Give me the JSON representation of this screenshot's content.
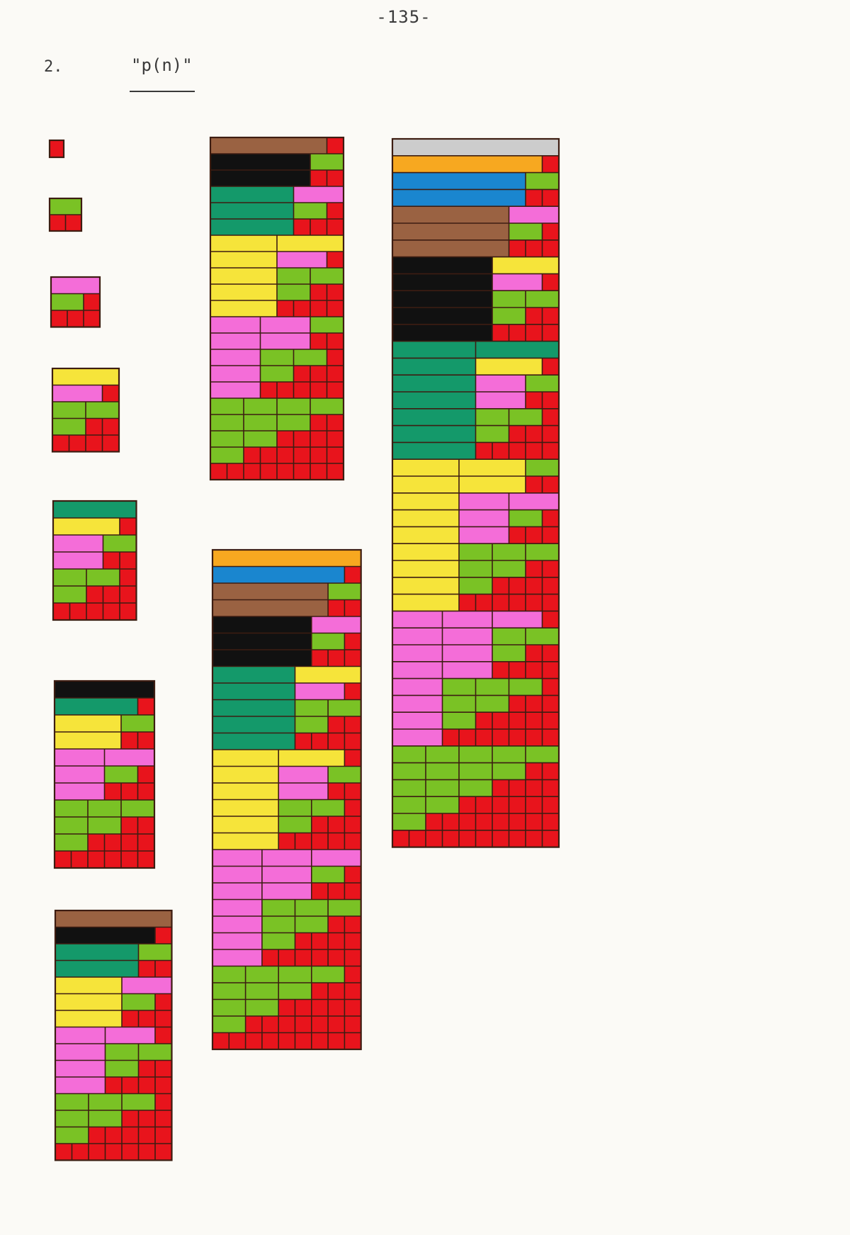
{
  "page": {
    "number": "-135-",
    "item_number": "2.",
    "title": "\"p(n)\""
  },
  "legend_colors": {
    "1": "#e8141c",
    "2": "#7ac225",
    "3": "#f46dd8",
    "4": "#f6e43a",
    "5": "#14996a",
    "6": "#111111",
    "7": "#9a6242",
    "8": "#1a86cf",
    "9": "#f7a820"
  },
  "diagrams": [
    {
      "n": 1,
      "partitions": [
        [
          1
        ]
      ]
    },
    {
      "n": 2,
      "partitions": [
        [
          2
        ],
        [
          1,
          1
        ]
      ]
    },
    {
      "n": 3,
      "partitions": [
        [
          3
        ],
        [
          2,
          1
        ],
        [
          1,
          1,
          1
        ]
      ]
    },
    {
      "n": 4,
      "partitions": [
        [
          4
        ],
        [
          3,
          1
        ],
        [
          2,
          2
        ],
        [
          2,
          1,
          1
        ],
        [
          1,
          1,
          1,
          1
        ]
      ]
    },
    {
      "n": 5,
      "partitions": [
        [
          5
        ],
        [
          4,
          1
        ],
        [
          3,
          2
        ],
        [
          3,
          1,
          1
        ],
        [
          2,
          2,
          1
        ],
        [
          2,
          1,
          1,
          1
        ],
        [
          1,
          1,
          1,
          1,
          1
        ]
      ]
    },
    {
      "n": 6,
      "partitions": [
        [
          6
        ],
        [
          5,
          1
        ],
        [
          4,
          2
        ],
        [
          4,
          1,
          1
        ],
        [
          3,
          3
        ],
        [
          3,
          2,
          1
        ],
        [
          3,
          1,
          1,
          1
        ],
        [
          2,
          2,
          2
        ],
        [
          2,
          2,
          1,
          1
        ],
        [
          2,
          1,
          1,
          1,
          1
        ],
        [
          1,
          1,
          1,
          1,
          1,
          1
        ]
      ]
    },
    {
      "n": 7,
      "partitions": [
        [
          7
        ],
        [
          6,
          1
        ],
        [
          5,
          2
        ],
        [
          5,
          1,
          1
        ],
        [
          4,
          3
        ],
        [
          4,
          2,
          1
        ],
        [
          4,
          1,
          1,
          1
        ],
        [
          3,
          3,
          1
        ],
        [
          3,
          2,
          2
        ],
        [
          3,
          2,
          1,
          1
        ],
        [
          3,
          1,
          1,
          1,
          1
        ],
        [
          2,
          2,
          2,
          1
        ],
        [
          2,
          2,
          1,
          1,
          1
        ],
        [
          2,
          1,
          1,
          1,
          1,
          1
        ],
        [
          1,
          1,
          1,
          1,
          1,
          1,
          1
        ]
      ]
    },
    {
      "n": 8,
      "partitions": [
        [
          7,
          1
        ],
        [
          6,
          2
        ],
        [
          6,
          1,
          1
        ],
        [
          5,
          3
        ],
        [
          5,
          2,
          1
        ],
        [
          5,
          1,
          1,
          1
        ],
        [
          4,
          4
        ],
        [
          4,
          3,
          1
        ],
        [
          4,
          2,
          2
        ],
        [
          4,
          2,
          1,
          1
        ],
        [
          4,
          1,
          1,
          1,
          1
        ],
        [
          3,
          3,
          2
        ],
        [
          3,
          3,
          1,
          1
        ],
        [
          3,
          2,
          2,
          1
        ],
        [
          3,
          2,
          1,
          1,
          1
        ],
        [
          3,
          1,
          1,
          1,
          1,
          1
        ],
        [
          2,
          2,
          2,
          2
        ],
        [
          2,
          2,
          2,
          1,
          1
        ],
        [
          2,
          2,
          1,
          1,
          1,
          1
        ],
        [
          2,
          1,
          1,
          1,
          1,
          1,
          1
        ],
        [
          1,
          1,
          1,
          1,
          1,
          1,
          1,
          1
        ]
      ]
    },
    {
      "n": 9,
      "partitions": [
        [
          9
        ],
        [
          8,
          1
        ],
        [
          7,
          2
        ],
        [
          7,
          1,
          1
        ],
        [
          6,
          3
        ],
        [
          6,
          2,
          1
        ],
        [
          6,
          1,
          1,
          1
        ],
        [
          5,
          4
        ],
        [
          5,
          3,
          1
        ],
        [
          5,
          2,
          2
        ],
        [
          5,
          2,
          1,
          1
        ],
        [
          5,
          1,
          1,
          1,
          1
        ],
        [
          4,
          4,
          1
        ],
        [
          4,
          3,
          2
        ],
        [
          4,
          3,
          1,
          1
        ],
        [
          4,
          2,
          2,
          1
        ],
        [
          4,
          2,
          1,
          1,
          1
        ],
        [
          4,
          1,
          1,
          1,
          1,
          1
        ],
        [
          3,
          3,
          3
        ],
        [
          3,
          3,
          2,
          1
        ],
        [
          3,
          3,
          1,
          1,
          1
        ],
        [
          3,
          2,
          2,
          2
        ],
        [
          3,
          2,
          2,
          1,
          1
        ],
        [
          3,
          2,
          1,
          1,
          1,
          1
        ],
        [
          3,
          1,
          1,
          1,
          1,
          1,
          1
        ],
        [
          2,
          2,
          2,
          2,
          1
        ],
        [
          2,
          2,
          2,
          1,
          1,
          1
        ],
        [
          2,
          2,
          1,
          1,
          1,
          1,
          1
        ],
        [
          2,
          1,
          1,
          1,
          1,
          1,
          1,
          1
        ],
        [
          1,
          1,
          1,
          1,
          1,
          1,
          1,
          1,
          1
        ]
      ]
    },
    {
      "n": 10,
      "partitions": [
        [
          10
        ],
        [
          9,
          1
        ],
        [
          8,
          2
        ],
        [
          8,
          1,
          1
        ],
        [
          7,
          3
        ],
        [
          7,
          2,
          1
        ],
        [
          7,
          1,
          1,
          1
        ],
        [
          6,
          4
        ],
        [
          6,
          3,
          1
        ],
        [
          6,
          2,
          2
        ],
        [
          6,
          2,
          1,
          1
        ],
        [
          6,
          1,
          1,
          1,
          1
        ],
        [
          5,
          5
        ],
        [
          5,
          4,
          1
        ],
        [
          5,
          3,
          2
        ],
        [
          5,
          3,
          1,
          1
        ],
        [
          5,
          2,
          2,
          1
        ],
        [
          5,
          2,
          1,
          1,
          1
        ],
        [
          5,
          1,
          1,
          1,
          1,
          1
        ],
        [
          4,
          4,
          2
        ],
        [
          4,
          4,
          1,
          1
        ],
        [
          4,
          3,
          3
        ],
        [
          4,
          3,
          2,
          1
        ],
        [
          4,
          3,
          1,
          1,
          1
        ],
        [
          4,
          2,
          2,
          2
        ],
        [
          4,
          2,
          2,
          1,
          1
        ],
        [
          4,
          2,
          1,
          1,
          1,
          1
        ],
        [
          4,
          1,
          1,
          1,
          1,
          1,
          1
        ],
        [
          3,
          3,
          3,
          1
        ],
        [
          3,
          3,
          2,
          2
        ],
        [
          3,
          3,
          2,
          1,
          1
        ],
        [
          3,
          3,
          1,
          1,
          1,
          1
        ],
        [
          3,
          2,
          2,
          2,
          1
        ],
        [
          3,
          2,
          2,
          1,
          1,
          1
        ],
        [
          3,
          2,
          1,
          1,
          1,
          1,
          1
        ],
        [
          3,
          1,
          1,
          1,
          1,
          1,
          1,
          1
        ],
        [
          2,
          2,
          2,
          2,
          2
        ],
        [
          2,
          2,
          2,
          2,
          1,
          1
        ],
        [
          2,
          2,
          2,
          1,
          1,
          1,
          1
        ],
        [
          2,
          2,
          1,
          1,
          1,
          1,
          1,
          1
        ],
        [
          2,
          1,
          1,
          1,
          1,
          1,
          1,
          1,
          1
        ],
        [
          1,
          1,
          1,
          1,
          1,
          1,
          1,
          1,
          1,
          1
        ]
      ]
    }
  ]
}
